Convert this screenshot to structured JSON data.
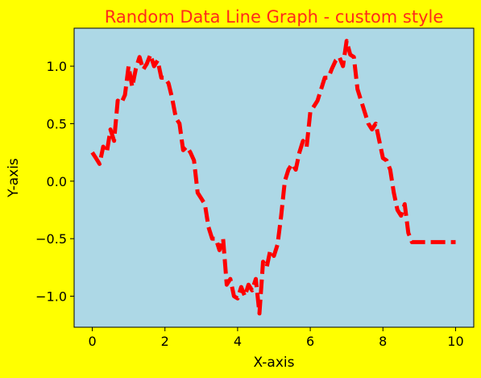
{
  "colors": {
    "figure_background": "#ffff00",
    "axes_background": "#add8e6",
    "title": "#ff2a1a",
    "line": "#ff0000",
    "axis_text": "#000000"
  },
  "chart_data": {
    "type": "line",
    "title": "Random Data Line Graph - custom style",
    "xlabel": "X-axis",
    "ylabel": "Y-axis",
    "xlim": [
      -0.5,
      10.5
    ],
    "ylim": [
      -1.27,
      1.33
    ],
    "grid": false,
    "xticks": [
      0,
      2,
      4,
      6,
      8,
      10
    ],
    "xtick_labels": [
      "0",
      "2",
      "4",
      "6",
      "8",
      "10"
    ],
    "yticks": [
      -1.0,
      -0.5,
      0.0,
      0.5,
      1.0
    ],
    "ytick_labels": [
      "−1.0",
      "−0.5",
      "0.0",
      "0.5",
      "1.0"
    ],
    "series": [
      {
        "line_style": "dashed",
        "color": "#ff0000",
        "x": [
          0.0,
          0.1,
          0.2,
          0.3,
          0.4,
          0.5,
          0.6,
          0.7,
          0.8,
          0.9,
          1.0,
          1.1,
          1.2,
          1.3,
          1.4,
          1.5,
          1.6,
          1.7,
          1.8,
          1.9,
          2.0,
          2.1,
          2.2,
          2.3,
          2.4,
          2.5,
          2.6,
          2.7,
          2.8,
          2.9,
          3.0,
          3.1,
          3.2,
          3.3,
          3.4,
          3.5,
          3.6,
          3.7,
          3.8,
          3.9,
          4.0,
          4.1,
          4.2,
          4.3,
          4.4,
          4.5,
          4.6,
          4.7,
          4.8,
          4.9,
          5.0,
          5.1,
          5.2,
          5.3,
          5.4,
          5.5,
          5.6,
          5.7,
          5.8,
          5.9,
          6.0,
          6.1,
          6.2,
          6.3,
          6.4,
          6.5,
          6.6,
          6.7,
          6.8,
          6.9,
          7.0,
          7.1,
          7.2,
          7.3,
          7.4,
          7.5,
          7.6,
          7.7,
          7.8,
          7.9,
          8.0,
          8.1,
          8.2,
          8.3,
          8.4,
          8.5,
          8.6,
          8.7,
          8.8,
          8.9,
          9.0,
          9.1,
          9.2,
          9.3,
          9.4,
          9.5,
          9.6,
          9.7,
          9.8,
          9.9,
          10.0
        ],
        "y": [
          0.25,
          0.2,
          0.15,
          0.3,
          0.25,
          0.45,
          0.35,
          0.7,
          0.68,
          0.75,
          1.0,
          0.82,
          0.98,
          1.08,
          0.97,
          1.02,
          1.1,
          1.0,
          1.05,
          0.9,
          0.9,
          0.85,
          0.72,
          0.55,
          0.5,
          0.27,
          0.3,
          0.25,
          0.18,
          -0.1,
          -0.15,
          -0.2,
          -0.4,
          -0.5,
          -0.5,
          -0.6,
          -0.5,
          -0.9,
          -0.85,
          -1.0,
          -1.02,
          -0.92,
          -1.0,
          -0.9,
          -0.95,
          -0.85,
          -1.15,
          -0.7,
          -0.75,
          -0.6,
          -0.65,
          -0.55,
          -0.3,
          0.0,
          0.1,
          0.15,
          0.1,
          0.25,
          0.35,
          0.3,
          0.6,
          0.65,
          0.7,
          0.8,
          0.9,
          0.9,
          0.98,
          1.05,
          1.08,
          1.0,
          1.22,
          1.1,
          1.08,
          0.8,
          0.7,
          0.6,
          0.5,
          0.45,
          0.5,
          0.35,
          0.2,
          0.18,
          0.1,
          -0.1,
          -0.25,
          -0.3,
          -0.2,
          -0.45,
          -0.53,
          -0.53,
          -0.53,
          -0.53,
          -0.53,
          -0.53,
          -0.53,
          -0.53,
          -0.53,
          -0.53,
          -0.53,
          -0.53,
          -0.53
        ]
      }
    ]
  }
}
